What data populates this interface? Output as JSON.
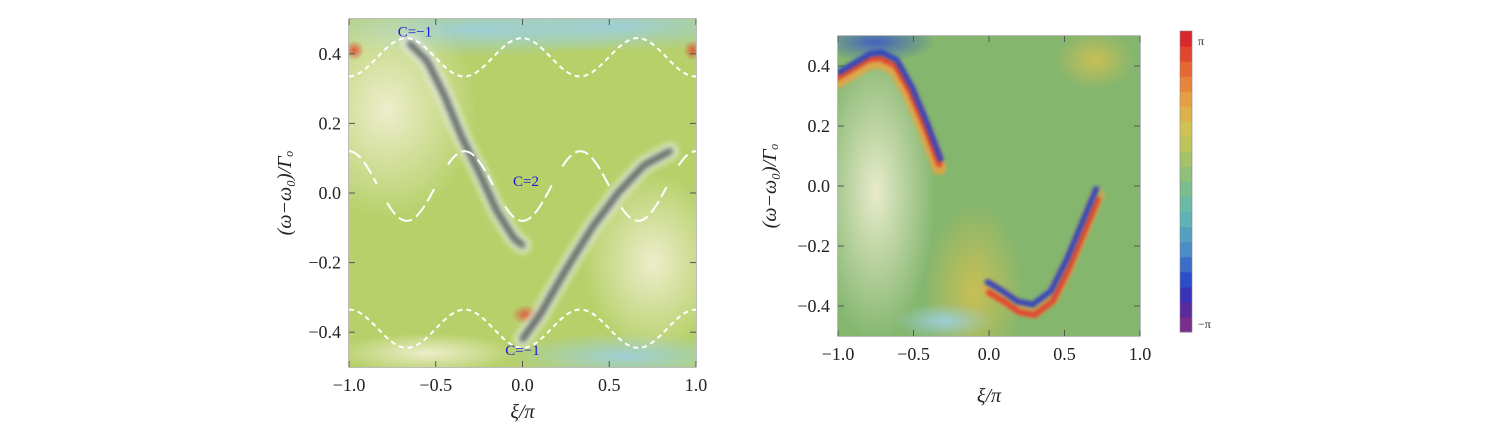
{
  "chart_data": [
    {
      "type": "heatmap",
      "xlabel": "ξ/π",
      "ylabel": "(ω−ω₀)/Γₒ",
      "xlim": [
        -1.0,
        1.0
      ],
      "ylim": [
        -0.5,
        0.5
      ],
      "x_ticks": [
        "−1.0",
        "−0.5",
        "0.0",
        "0.5",
        "1.0"
      ],
      "x_tick_values": [
        -1.0,
        -0.5,
        0.0,
        0.5,
        1.0
      ],
      "y_ticks": [
        "0.4",
        "0.2",
        "0.0",
        "−0.2",
        "−0.4"
      ],
      "y_tick_values": [
        0.4,
        0.2,
        0.0,
        -0.2,
        -0.4
      ],
      "background_color": "#b7d06a",
      "dashed_band_color": "#ffffff",
      "annotations": [
        {
          "text": "C=−1",
          "x": -0.62,
          "y": 0.45
        },
        {
          "text": "C=2",
          "x": 0.02,
          "y": 0.02
        },
        {
          "text": "C=−1",
          "x": 0.0,
          "y": -0.465
        }
      ],
      "bands": {
        "upper_center": 0.39,
        "upper_amplitude": 0.055,
        "middle_center": 0.02,
        "middle_amplitude": 0.1,
        "lower_center": -0.39,
        "lower_amplitude": 0.055
      }
    },
    {
      "type": "heatmap",
      "xlabel": "ξ/π",
      "ylabel": "(ω−ω₀)/Γₒ",
      "xlim": [
        -1.0,
        1.0
      ],
      "ylim": [
        -0.5,
        0.5
      ],
      "x_ticks": [
        "−1.0",
        "−0.5",
        "0.0",
        "0.5",
        "1.0"
      ],
      "x_tick_values": [
        -1.0,
        -0.5,
        0.0,
        0.5,
        1.0
      ],
      "y_ticks": [
        "0.4",
        "0.2",
        "0.0",
        "−0.2",
        "−0.4"
      ],
      "y_tick_values": [
        0.4,
        0.2,
        0.0,
        -0.2,
        -0.4
      ],
      "background_color": "#84b66e",
      "colorbar": {
        "min_label": "−π",
        "max_label": "π",
        "range": [
          -3.1416,
          3.1416
        ],
        "colors": [
          "#7b2d8e",
          "#5b2a9c",
          "#3a33b8",
          "#2d4cc8",
          "#3c6ec9",
          "#4a8cc6",
          "#55a0c0",
          "#5fb2b6",
          "#6abaa6",
          "#7bbd8e",
          "#8fbf78",
          "#a6c266",
          "#bcc45a",
          "#cfc152",
          "#dcb34a",
          "#e39f42",
          "#e6853a",
          "#e66634",
          "#e2472e",
          "#d8282b"
        ]
      }
    }
  ]
}
